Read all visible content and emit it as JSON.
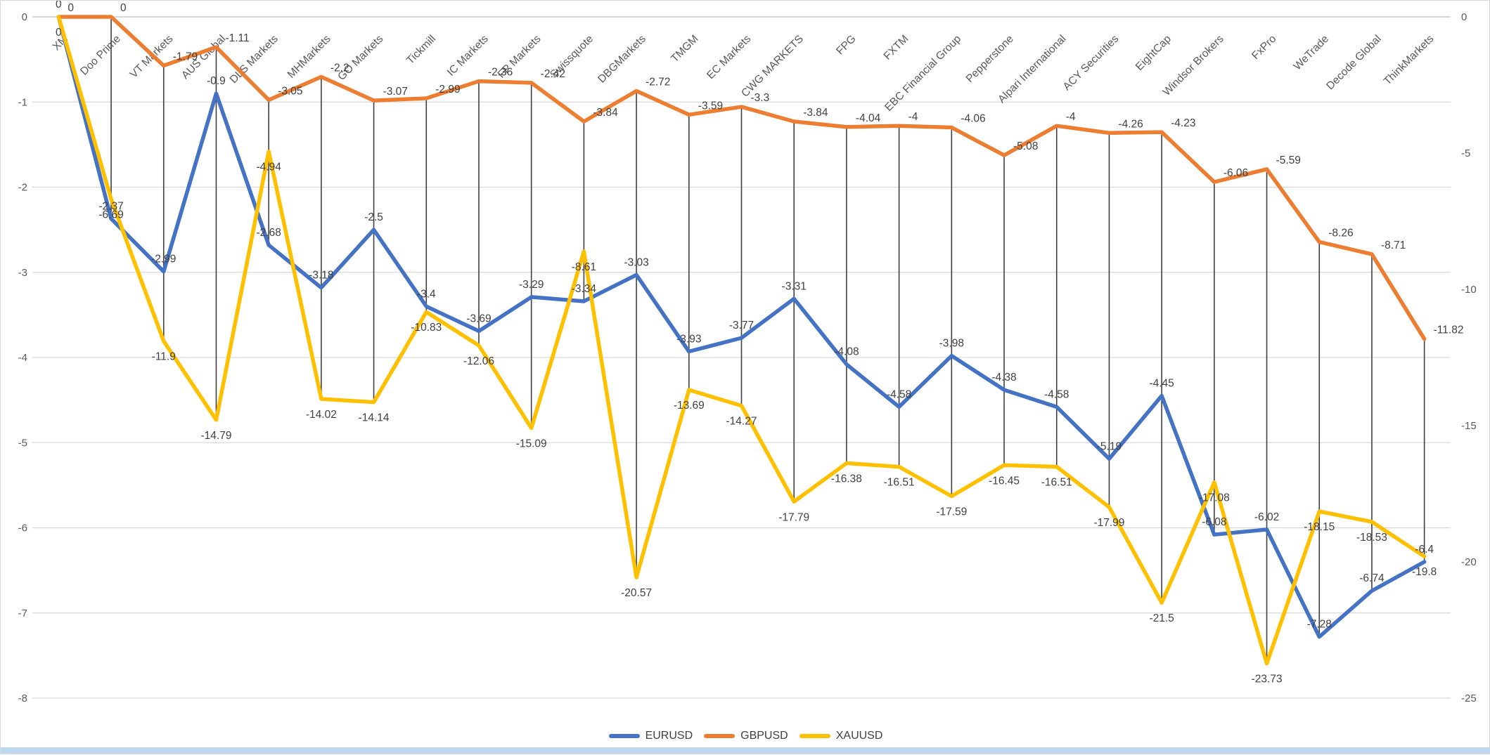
{
  "chart_data": {
    "type": "line",
    "title": "",
    "categories": [
      "XM",
      "Doo Prime",
      "VT Markets",
      "AUS Global",
      "DLS Markets",
      "MHMarkets",
      "GO Markets",
      "Tickmill",
      "IC Markets",
      "FP Markets",
      "Swissquote",
      "DBGMarkets",
      "TMGM",
      "EC Markets",
      "CWG MARKETS",
      "FPG",
      "FXTM",
      "EBC Financial Group",
      "Pepperstone",
      "Alpari International",
      "ACY Securities",
      "EightCap",
      "Windsor Brokers",
      "FxPro",
      "WeTrade",
      "Decode Global",
      "ThinkMarkets"
    ],
    "series": [
      {
        "name": "EURUSD",
        "color": "#4472C4",
        "axis": "left",
        "label_position": "above",
        "values": [
          0,
          -2.37,
          -2.99,
          -0.9,
          -2.68,
          -3.18,
          -2.5,
          -3.4,
          -3.69,
          -3.29,
          -3.34,
          -3.03,
          -3.93,
          -3.77,
          -3.31,
          -4.08,
          -4.58,
          -3.98,
          -4.38,
          -4.58,
          -5.19,
          -4.45,
          -6.08,
          -6.02,
          -7.28,
          -6.74,
          -6.4
        ]
      },
      {
        "name": "GBPUSD",
        "color": "#ED7D31",
        "axis": "right",
        "label_position": "right",
        "values": [
          0,
          0,
          -1.79,
          -1.11,
          -3.05,
          -2.2,
          -3.07,
          -2.99,
          -2.36,
          -2.42,
          -3.84,
          -2.72,
          -3.59,
          -3.3,
          -3.84,
          -4.04,
          -4,
          -4.06,
          -5.08,
          -4,
          -4.26,
          -4.23,
          -6.06,
          -5.59,
          -8.26,
          -8.71,
          -11.82
        ]
      },
      {
        "name": "XAUUSD",
        "color": "#FFC000",
        "axis": "right",
        "label_position": "below",
        "values": [
          0,
          -6.69,
          -11.9,
          -14.79,
          -4.94,
          -14.02,
          -14.14,
          -10.83,
          -12.06,
          -15.09,
          -8.61,
          -20.57,
          -13.69,
          -14.27,
          -17.79,
          -16.38,
          -16.51,
          -17.59,
          -16.45,
          -16.51,
          -17.99,
          -21.5,
          -17.08,
          -23.73,
          -18.15,
          -18.53,
          -19.8
        ]
      }
    ],
    "left_axis": {
      "min": -8,
      "max": 0,
      "ticks": [
        "0",
        "-1",
        "-2",
        "-3",
        "-4",
        "-5",
        "-6",
        "-7",
        "-8"
      ]
    },
    "right_axis": {
      "min": -25,
      "max": 0,
      "ticks": [
        "0",
        "-5",
        "-10",
        "-15",
        "-20",
        "-25"
      ]
    },
    "legend": {
      "items": [
        "EURUSD",
        "GBPUSD",
        "XAUUSD"
      ]
    },
    "grid": true,
    "high_low_lines": true,
    "colors": {
      "gridline": "#d9d9d9",
      "zero_line": "#bfbfbf",
      "high_low_line": "#404040",
      "data_label": "#404040",
      "axis_label": "#595959",
      "bottom_strip": "#bdd7ee"
    }
  }
}
